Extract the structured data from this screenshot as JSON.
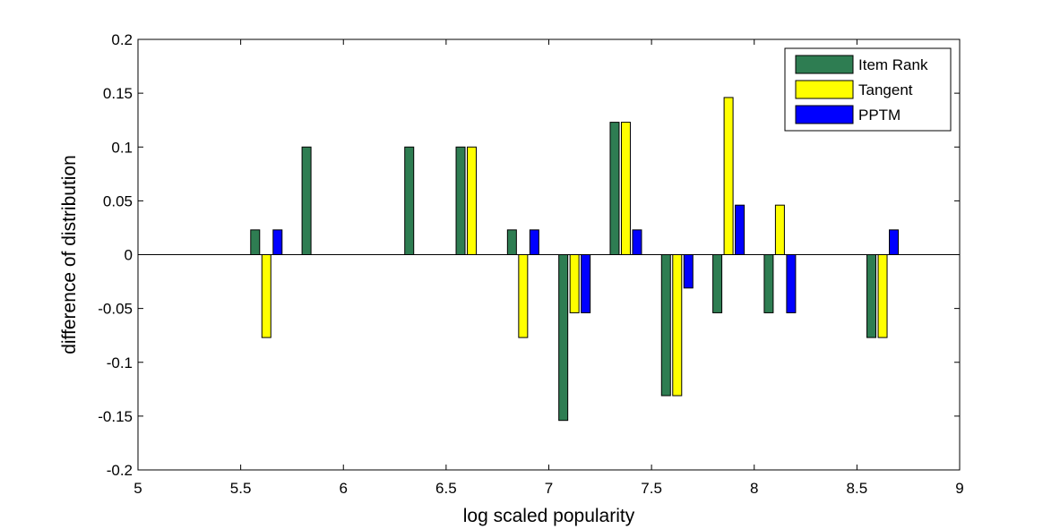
{
  "chart_data": {
    "type": "bar",
    "title": "",
    "xlabel": "log scaled popularity",
    "ylabel": "difference of distribution",
    "xlim": [
      5,
      9
    ],
    "ylim": [
      -0.2,
      0.2
    ],
    "xticks": [
      "5",
      "5.5",
      "6",
      "6.5",
      "7",
      "7.5",
      "8",
      "8.5",
      "9"
    ],
    "yticks": [
      "-0.2",
      "-0.15",
      "-0.1",
      "-0.05",
      "0",
      "0.05",
      "0.1",
      "0.15",
      "0.2"
    ],
    "grid": false,
    "legend_position": "top-right",
    "x": [
      5.625,
      5.875,
      6.375,
      6.625,
      6.875,
      7.125,
      7.375,
      7.625,
      7.875,
      8.125,
      8.625
    ],
    "series": [
      {
        "name": "Item Rank",
        "color": "#2e7d52",
        "values": [
          0.023,
          0.1,
          0.1,
          0.1,
          0.023,
          -0.154,
          0.123,
          -0.131,
          -0.054,
          -0.054,
          -0.077
        ]
      },
      {
        "name": "Tangent",
        "color": "#ffff00",
        "values": [
          -0.077,
          0,
          0,
          0.1,
          -0.077,
          -0.054,
          0.123,
          -0.131,
          0.146,
          0.046,
          -0.077
        ]
      },
      {
        "name": "PPTM",
        "color": "#0000ff",
        "values": [
          0.023,
          0,
          0,
          0,
          0.023,
          -0.054,
          0.023,
          -0.031,
          0.046,
          -0.054,
          0.023
        ]
      }
    ]
  }
}
